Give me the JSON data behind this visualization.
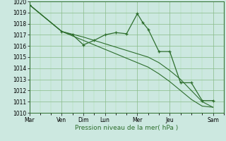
{
  "xlabel": "Pression niveau de la mer( hPa )",
  "ylim": [
    1010,
    1020
  ],
  "yticks": [
    1010,
    1011,
    1012,
    1013,
    1014,
    1015,
    1016,
    1017,
    1018,
    1019,
    1020
  ],
  "bg_color": "#cce8e0",
  "grid_major_color": "#88bb88",
  "grid_minor_color": "#aaddaa",
  "line_color": "#2d6e2d",
  "day_labels": [
    "Mar",
    "Ven",
    "Dim",
    "Lun",
    "Mer",
    "Jeu",
    "Sam"
  ],
  "day_positions": [
    0,
    24,
    40,
    56,
    80,
    104,
    136
  ],
  "xlim": [
    0,
    144
  ],
  "series1_x": [
    0,
    24,
    32,
    40,
    48,
    56,
    64,
    72,
    80,
    84,
    88,
    96,
    104,
    112,
    120,
    128,
    136
  ],
  "series1_y": [
    1019.7,
    1017.3,
    1017.0,
    1016.1,
    1016.5,
    1017.0,
    1017.2,
    1017.1,
    1018.9,
    1018.1,
    1017.5,
    1015.5,
    1015.5,
    1012.7,
    1012.7,
    1011.1,
    1011.1
  ],
  "series2_x": [
    0,
    24,
    32,
    40,
    48,
    56,
    64,
    72,
    80,
    88,
    96,
    104,
    112,
    120,
    128,
    136
  ],
  "series2_y": [
    1019.7,
    1017.3,
    1017.05,
    1016.8,
    1016.5,
    1016.2,
    1015.9,
    1015.6,
    1015.3,
    1015.0,
    1014.5,
    1013.8,
    1013.0,
    1012.0,
    1011.0,
    1010.5
  ],
  "series3_x": [
    0,
    24,
    32,
    40,
    48,
    56,
    64,
    72,
    80,
    88,
    96,
    104,
    112,
    120,
    128,
    136
  ],
  "series3_y": [
    1019.7,
    1017.3,
    1016.9,
    1016.5,
    1016.1,
    1015.7,
    1015.3,
    1014.9,
    1014.5,
    1014.1,
    1013.5,
    1012.8,
    1012.0,
    1011.2,
    1010.6,
    1010.5
  ]
}
